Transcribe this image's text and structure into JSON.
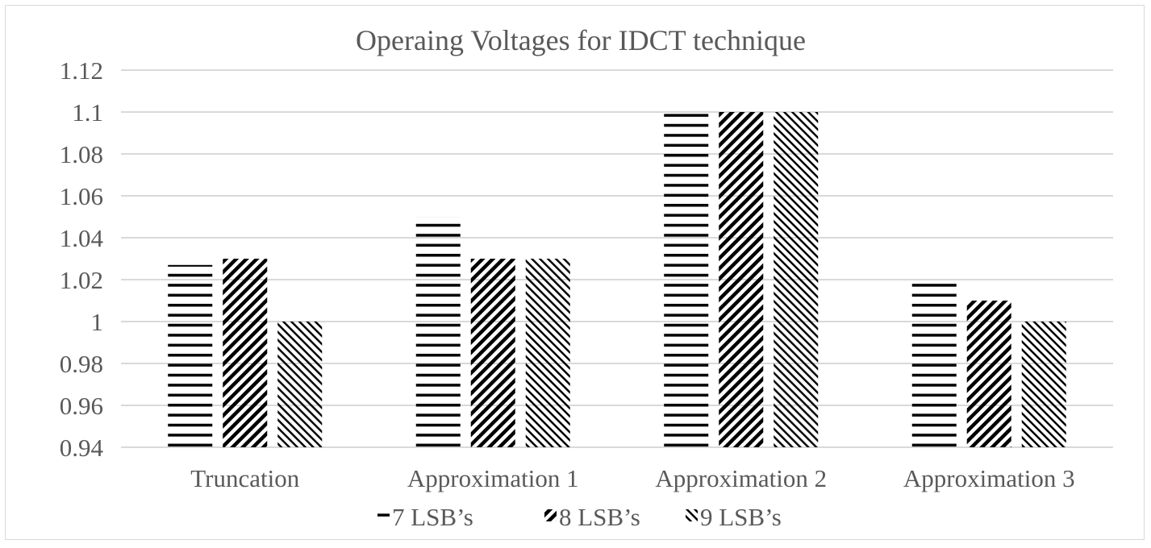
{
  "chart_data": {
    "type": "bar",
    "title": "Operaing Voltages for IDCT technique",
    "xlabel": "",
    "ylabel": "",
    "categories": [
      "Truncation",
      "Approximation 1",
      "Approximation 2",
      "Approximation 3"
    ],
    "series": [
      {
        "name": "7 LSB’s",
        "pattern": "horizontal",
        "values": [
          1.027,
          1.05,
          1.1,
          1.02
        ]
      },
      {
        "name": "8 LSB’s",
        "pattern": "wide-upward-diagonal",
        "values": [
          1.03,
          1.03,
          1.1,
          1.01
        ]
      },
      {
        "name": "9 LSB’s",
        "pattern": "downward-diagonal",
        "values": [
          1.0,
          1.03,
          1.1,
          1.0
        ]
      }
    ],
    "ylim": [
      0.94,
      1.12
    ],
    "yticks": [
      "0.94",
      "0.96",
      "0.98",
      "1",
      "1.02",
      "1.04",
      "1.06",
      "1.08",
      "1.1",
      "1.12"
    ],
    "grid": true,
    "legend": "bottom",
    "colors": {
      "bar": "#000000",
      "grid": "#d9d9d9",
      "text": "#595959"
    }
  }
}
